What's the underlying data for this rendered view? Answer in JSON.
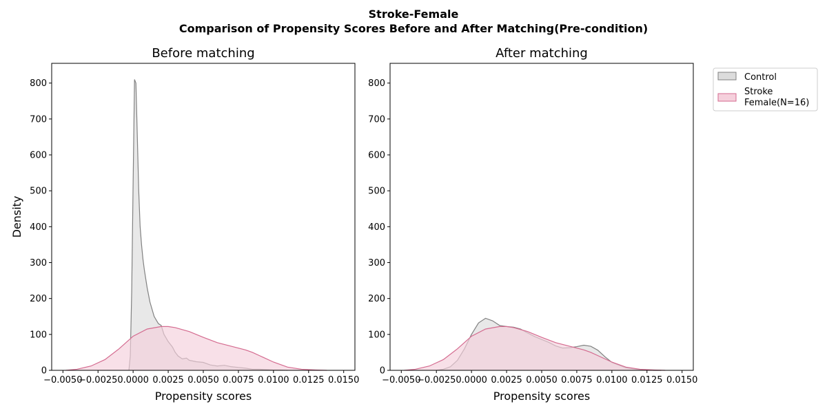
{
  "figure": {
    "suptitle_line1": "Stroke-Female",
    "suptitle_line2": "Comparison of Propensity Scores Before and After Matching(Pre-condition)"
  },
  "legend": {
    "placement": "upper right, outside plots",
    "entries": [
      {
        "label_lines": [
          "Control"
        ],
        "color": "#808080",
        "fill": "#dcdcdc"
      },
      {
        "label_lines": [
          "Stroke",
          "Female(N=16)"
        ],
        "color": "#d46a8f",
        "fill": "#f5d0dc"
      }
    ]
  },
  "chart_data": [
    {
      "type": "area",
      "title": "Before matching",
      "xlabel": "Propensity scores",
      "ylabel": "Density",
      "xlim": [
        -0.0058,
        0.0158
      ],
      "ylim": [
        0,
        855
      ],
      "xticks": [
        -0.005,
        -0.0025,
        0.0,
        0.0025,
        0.005,
        0.0075,
        0.01,
        0.0125,
        0.015
      ],
      "xtick_labels": [
        "−0.0050",
        "−0.0025",
        "0.0000",
        "0.0025",
        "0.0050",
        "0.0075",
        "0.0100",
        "0.0125",
        "0.0150"
      ],
      "yticks": [
        0,
        100,
        200,
        300,
        400,
        500,
        600,
        700,
        800
      ],
      "ytick_labels": [
        "0",
        "100",
        "200",
        "300",
        "400",
        "500",
        "600",
        "700",
        "800"
      ],
      "grid": false,
      "series": [
        {
          "name": "Control",
          "color": "#808080",
          "fill": "#dcdcdc",
          "x": [
            -0.0003,
            -0.0002,
            -0.0001,
            0.0,
            0.0001,
            0.0002,
            0.0003,
            0.0004,
            0.0005,
            0.0006,
            0.0007,
            0.0008,
            0.001,
            0.0012,
            0.0015,
            0.0018,
            0.002,
            0.0022,
            0.0025,
            0.0028,
            0.003,
            0.0032,
            0.0035,
            0.0038,
            0.004,
            0.0045,
            0.005,
            0.0055,
            0.006,
            0.0065,
            0.007,
            0.0075,
            0.008,
            0.0085,
            0.009,
            0.0095,
            0.01,
            0.0105,
            0.011
          ],
          "y": [
            0,
            40,
            220,
            520,
            810,
            800,
            650,
            500,
            400,
            350,
            310,
            280,
            230,
            190,
            150,
            130,
            125,
            100,
            80,
            65,
            50,
            40,
            32,
            34,
            28,
            24,
            22,
            15,
            12,
            14,
            10,
            8,
            6,
            3,
            3,
            2,
            1,
            1,
            0
          ]
        },
        {
          "name": "Stroke Female(N=16)",
          "color": "#d46a8f",
          "fill": "#f5d0dc",
          "x": [
            -0.0048,
            -0.004,
            -0.003,
            -0.002,
            -0.001,
            0.0,
            0.001,
            0.002,
            0.0025,
            0.003,
            0.004,
            0.005,
            0.006,
            0.007,
            0.008,
            0.0085,
            0.009,
            0.01,
            0.011,
            0.012,
            0.013,
            0.0138
          ],
          "y": [
            0,
            3,
            12,
            30,
            60,
            95,
            115,
            122,
            122,
            119,
            108,
            92,
            77,
            67,
            57,
            50,
            41,
            23,
            9,
            3,
            1,
            0
          ]
        }
      ]
    },
    {
      "type": "area",
      "title": "After matching",
      "xlabel": "Propensity scores",
      "ylabel": "",
      "xlim": [
        -0.0058,
        0.0158
      ],
      "ylim": [
        0,
        855
      ],
      "xticks": [
        -0.005,
        -0.0025,
        0.0,
        0.0025,
        0.005,
        0.0075,
        0.01,
        0.0125,
        0.015
      ],
      "xtick_labels": [
        "−0.0050",
        "−0.0025",
        "0.0000",
        "0.0025",
        "0.0050",
        "0.0075",
        "0.0100",
        "0.0125",
        "0.0150"
      ],
      "yticks": [
        0,
        100,
        200,
        300,
        400,
        500,
        600,
        700,
        800
      ],
      "ytick_labels": [
        "0",
        "100",
        "200",
        "300",
        "400",
        "500",
        "600",
        "700",
        "800"
      ],
      "grid": false,
      "series": [
        {
          "name": "Control",
          "color": "#808080",
          "fill": "#dcdcdc",
          "x": [
            -0.0025,
            -0.002,
            -0.0015,
            -0.001,
            -0.0005,
            0.0,
            0.0005,
            0.001,
            0.0015,
            0.002,
            0.0025,
            0.003,
            0.0035,
            0.004,
            0.0045,
            0.005,
            0.0055,
            0.006,
            0.0065,
            0.007,
            0.0075,
            0.008,
            0.0085,
            0.009,
            0.0095,
            0.01,
            0.011,
            0.012,
            0.013,
            0.0135
          ],
          "y": [
            0,
            3,
            10,
            28,
            60,
            100,
            132,
            145,
            138,
            125,
            122,
            120,
            115,
            104,
            94,
            86,
            78,
            68,
            62,
            63,
            66,
            70,
            67,
            56,
            38,
            22,
            7,
            2,
            0,
            0
          ]
        },
        {
          "name": "Stroke Female(N=16)",
          "color": "#d46a8f",
          "fill": "#f5d0dc",
          "x": [
            -0.0048,
            -0.004,
            -0.003,
            -0.002,
            -0.001,
            0.0,
            0.001,
            0.002,
            0.0025,
            0.003,
            0.004,
            0.005,
            0.006,
            0.007,
            0.008,
            0.0085,
            0.009,
            0.01,
            0.011,
            0.012,
            0.013,
            0.0138
          ],
          "y": [
            0,
            3,
            12,
            30,
            60,
            95,
            115,
            122,
            122,
            119,
            108,
            92,
            77,
            67,
            57,
            50,
            41,
            23,
            9,
            3,
            1,
            0
          ]
        }
      ]
    }
  ]
}
